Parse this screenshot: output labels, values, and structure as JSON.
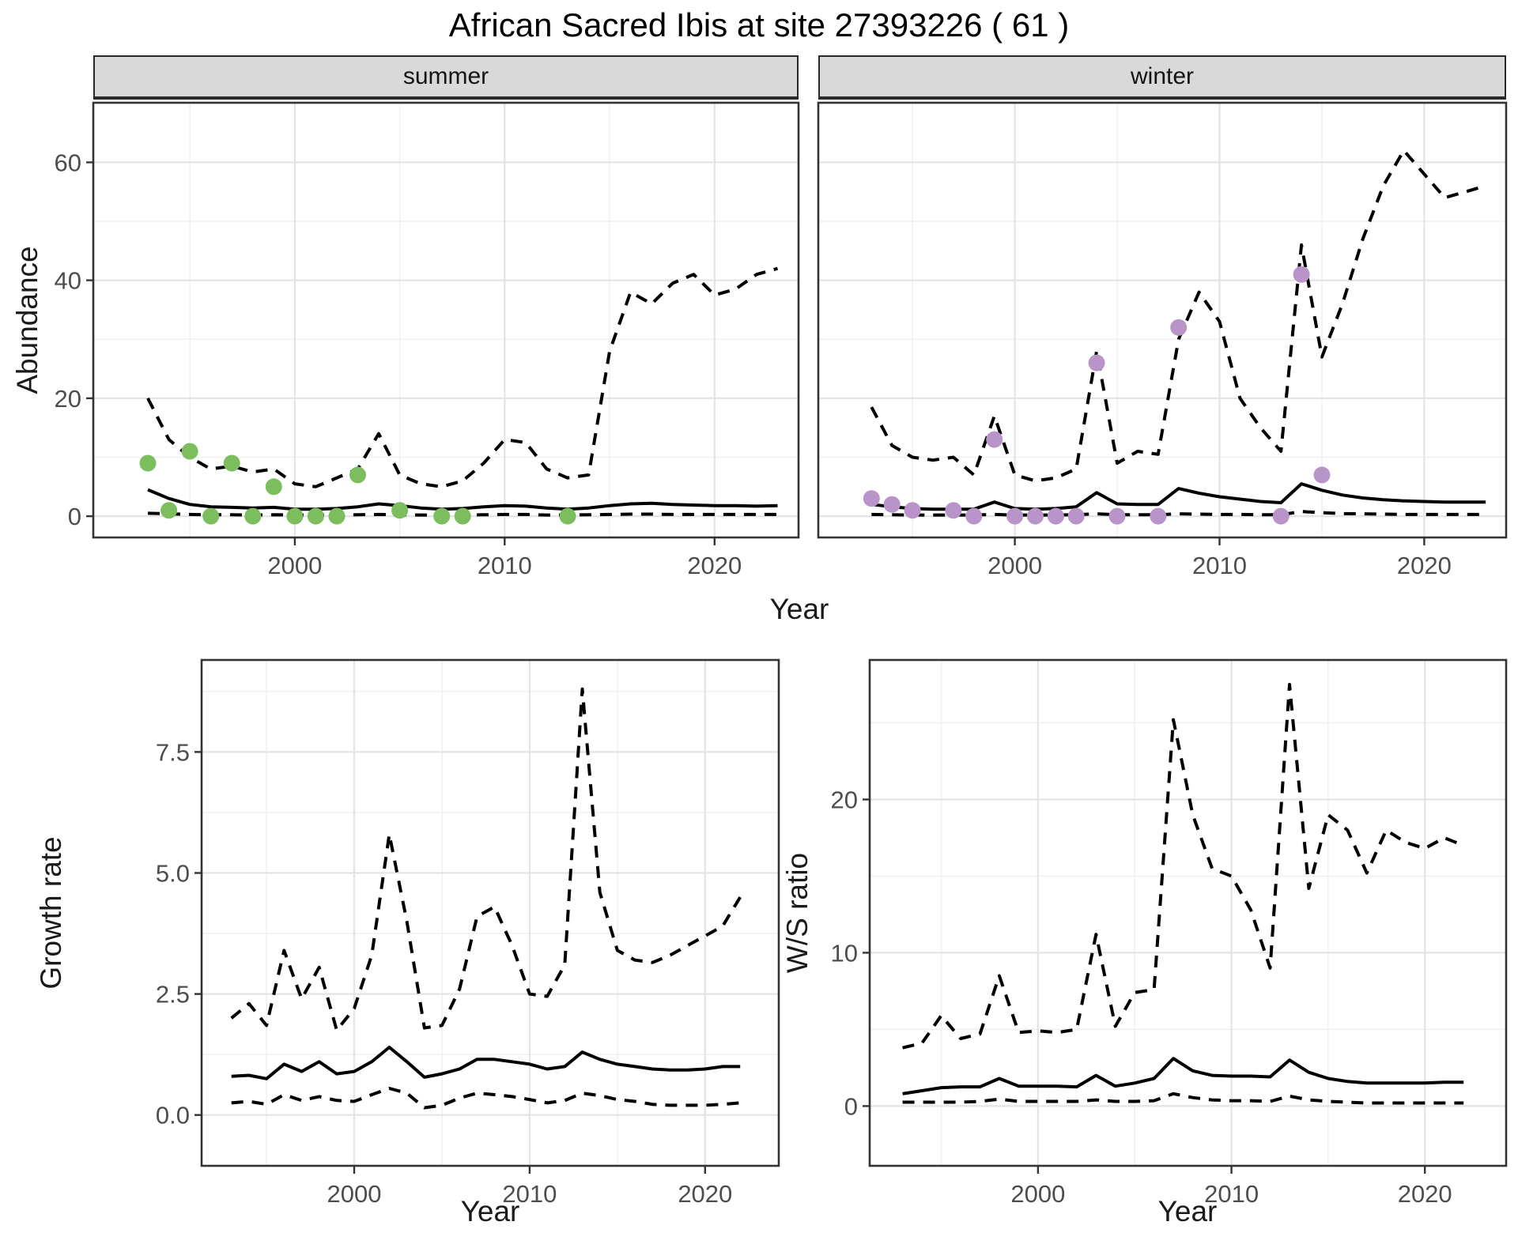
{
  "title": "African Sacred Ibis at site 27393226 ( 61 )",
  "facets": [
    "summer",
    "winter"
  ],
  "axes": {
    "x_label": "Year",
    "abundance_label": "Abundance",
    "growth_label": "Growth rate",
    "ws_label": "W/S ratio"
  },
  "colors": {
    "summer_points": "#7cbd5e",
    "winter_points": "#b894c9",
    "line": "#000000",
    "grid_major": "#e4e4e4",
    "grid_minor": "#f0f0f0",
    "panel_border": "#333333",
    "strip_bg": "#d9d9d9",
    "tick_label": "#4d4d4d"
  },
  "chart_data": [
    {
      "key": "summer_abundance",
      "type": "line",
      "title": "summer",
      "xlabel": "Year",
      "ylabel": "Abundance",
      "grid": true,
      "legend": "none",
      "xlim": [
        1990.4,
        2024.0
      ],
      "ylim": [
        -3.6,
        70.1
      ],
      "xticks": [
        2000,
        2010,
        2020
      ],
      "minor_xticks": [
        1995,
        2005,
        2015
      ],
      "yticks": [
        0,
        20,
        40,
        60
      ],
      "ytick_labels": [
        "0",
        "20",
        "40",
        "60"
      ],
      "minor_yticks": [
        10,
        30,
        50,
        70
      ],
      "x": [
        1993,
        1994,
        1995,
        1996,
        1997,
        1998,
        1999,
        2000,
        2001,
        2002,
        2003,
        2004,
        2005,
        2006,
        2007,
        2008,
        2009,
        2010,
        2011,
        2012,
        2013,
        2014,
        2015,
        2016,
        2017,
        2018,
        2019,
        2020,
        2021,
        2022,
        2023
      ],
      "series": [
        {
          "key": "upper_ci",
          "name": "upper 95% CI",
          "style": "dashed",
          "values": [
            20,
            13,
            10,
            8,
            8.5,
            7.5,
            8,
            5.5,
            5,
            6.5,
            8,
            14,
            7,
            5.5,
            5,
            6,
            9,
            13,
            12.5,
            8,
            6.5,
            7,
            28,
            38,
            36,
            39.5,
            41,
            37.5,
            38.5,
            41,
            42
          ]
        },
        {
          "key": "median",
          "name": "median estimate",
          "style": "solid",
          "values": [
            4.5,
            3,
            2,
            1.6,
            1.5,
            1.4,
            1.5,
            1.2,
            1.2,
            1.3,
            1.6,
            2.1,
            1.8,
            1.4,
            1.2,
            1.3,
            1.6,
            1.8,
            1.7,
            1.4,
            1.2,
            1.4,
            1.8,
            2.1,
            2.2,
            2.0,
            1.9,
            1.8,
            1.8,
            1.7,
            1.8
          ]
        },
        {
          "key": "lower_ci",
          "name": "lower 95% CI",
          "style": "dashed",
          "values": [
            0.5,
            0.4,
            0.3,
            0.25,
            0.25,
            0.2,
            0.25,
            0.2,
            0.2,
            0.2,
            0.25,
            0.3,
            0.25,
            0.2,
            0.2,
            0.2,
            0.25,
            0.3,
            0.3,
            0.2,
            0.2,
            0.25,
            0.3,
            0.35,
            0.35,
            0.3,
            0.3,
            0.3,
            0.3,
            0.3,
            0.3
          ]
        }
      ],
      "points": {
        "key": "observed_counts",
        "name": "observed counts",
        "color": "#7cbd5e",
        "x": [
          1993,
          1994,
          1995,
          1996,
          1997,
          1998,
          1999,
          2000,
          2001,
          2002,
          2003,
          2005,
          2007,
          2008,
          2013
        ],
        "y": [
          9,
          1,
          11,
          0,
          9,
          0,
          5,
          0,
          0,
          0,
          7,
          1,
          0,
          0,
          0
        ]
      }
    },
    {
      "key": "winter_abundance",
      "type": "line",
      "title": "winter",
      "xlabel": "Year",
      "ylabel": "Abundance",
      "grid": true,
      "legend": "none",
      "xlim": [
        1990.4,
        2024.0
      ],
      "ylim": [
        -3.6,
        70.1
      ],
      "xticks": [
        2000,
        2010,
        2020
      ],
      "minor_xticks": [
        1995,
        2005,
        2015
      ],
      "yticks": [
        0,
        20,
        40,
        60
      ],
      "ytick_labels": [
        "0",
        "20",
        "40",
        "60"
      ],
      "minor_yticks": [
        10,
        30,
        50,
        70
      ],
      "x": [
        1993,
        1994,
        1995,
        1996,
        1997,
        1998,
        1999,
        2000,
        2001,
        2002,
        2003,
        2004,
        2005,
        2006,
        2007,
        2008,
        2009,
        2010,
        2011,
        2012,
        2013,
        2014,
        2015,
        2016,
        2017,
        2018,
        2019,
        2020,
        2021,
        2022,
        2023
      ],
      "series": [
        {
          "key": "upper_ci",
          "name": "upper 95% CI",
          "style": "dashed",
          "values": [
            18.5,
            12,
            10,
            9.5,
            10,
            7,
            17,
            7,
            6,
            6.5,
            8,
            28,
            9,
            11,
            10.5,
            30,
            38,
            33,
            20,
            15,
            11,
            46,
            27,
            36,
            47,
            56,
            62,
            58,
            54,
            55,
            56
          ]
        },
        {
          "key": "median",
          "name": "median estimate",
          "style": "solid",
          "values": [
            2,
            1.6,
            1.3,
            1.2,
            1.2,
            1.2,
            2.4,
            1.3,
            1.2,
            1.3,
            1.6,
            4,
            2.1,
            2,
            2,
            4.7,
            3.9,
            3.3,
            2.9,
            2.5,
            2.3,
            5.5,
            4.4,
            3.6,
            3.1,
            2.8,
            2.6,
            2.5,
            2.4,
            2.4,
            2.4
          ]
        },
        {
          "key": "lower_ci",
          "name": "lower 95% CI",
          "style": "dashed",
          "values": [
            0.3,
            0.25,
            0.2,
            0.2,
            0.2,
            0.2,
            0.3,
            0.2,
            0.2,
            0.2,
            0.25,
            0.4,
            0.25,
            0.25,
            0.25,
            0.4,
            0.35,
            0.3,
            0.3,
            0.25,
            0.25,
            0.8,
            0.6,
            0.45,
            0.4,
            0.35,
            0.3,
            0.3,
            0.3,
            0.3,
            0.3
          ]
        }
      ],
      "points": {
        "key": "observed_counts",
        "name": "observed counts",
        "color": "#b894c9",
        "x": [
          1993,
          1994,
          1995,
          1997,
          1998,
          1999,
          2000,
          2001,
          2002,
          2003,
          2004,
          2005,
          2007,
          2008,
          2013,
          2014,
          2015
        ],
        "y": [
          3,
          2,
          1,
          1,
          0,
          13,
          0,
          0,
          0,
          0,
          26,
          0,
          0,
          32,
          0,
          41,
          7
        ]
      }
    },
    {
      "key": "growth_rate",
      "type": "line",
      "title": "",
      "xlabel": "Year",
      "ylabel": "Growth rate",
      "grid": true,
      "legend": "none",
      "xlim": [
        1991.3,
        2024.2
      ],
      "ylim": [
        -1.05,
        9.4
      ],
      "xticks": [
        2000,
        2010,
        2020
      ],
      "minor_xticks": [
        1995,
        2005,
        2015
      ],
      "yticks": [
        0,
        2.5,
        5,
        7.5
      ],
      "ytick_labels": [
        "0.0",
        "2.5",
        "5.0",
        "7.5"
      ],
      "minor_yticks": [
        1.25,
        3.75,
        6.25,
        8.75
      ],
      "x": [
        1993,
        1994,
        1995,
        1996,
        1997,
        1998,
        1999,
        2000,
        2001,
        2002,
        2003,
        2004,
        2005,
        2006,
        2007,
        2008,
        2009,
        2010,
        2011,
        2012,
        2013,
        2014,
        2015,
        2016,
        2017,
        2018,
        2019,
        2020,
        2021,
        2022
      ],
      "series": [
        {
          "key": "upper_ci",
          "name": "upper 95% CI",
          "style": "dashed",
          "values": [
            2.0,
            2.3,
            1.85,
            3.4,
            2.4,
            3.05,
            1.75,
            2.2,
            3.3,
            5.8,
            4.0,
            1.8,
            1.85,
            2.6,
            4.1,
            4.3,
            3.5,
            2.5,
            2.45,
            3.1,
            8.8,
            4.6,
            3.4,
            3.2,
            3.15,
            3.3,
            3.5,
            3.7,
            3.9,
            4.5
          ]
        },
        {
          "key": "median",
          "name": "median estimate",
          "style": "solid",
          "values": [
            0.8,
            0.82,
            0.75,
            1.05,
            0.9,
            1.1,
            0.85,
            0.9,
            1.1,
            1.4,
            1.1,
            0.78,
            0.85,
            0.95,
            1.15,
            1.15,
            1.1,
            1.05,
            0.95,
            1.0,
            1.3,
            1.15,
            1.05,
            1.0,
            0.95,
            0.93,
            0.93,
            0.95,
            1.0,
            1.0
          ]
        },
        {
          "key": "lower_ci",
          "name": "lower 95% CI",
          "style": "dashed",
          "values": [
            0.25,
            0.28,
            0.22,
            0.42,
            0.3,
            0.38,
            0.3,
            0.28,
            0.42,
            0.55,
            0.45,
            0.15,
            0.2,
            0.35,
            0.45,
            0.42,
            0.38,
            0.32,
            0.25,
            0.3,
            0.45,
            0.4,
            0.32,
            0.28,
            0.22,
            0.2,
            0.2,
            0.2,
            0.22,
            0.25
          ]
        }
      ]
    },
    {
      "key": "ws_ratio",
      "type": "line",
      "title": "",
      "xlabel": "Year",
      "ylabel": "W/S ratio",
      "grid": true,
      "legend": "none",
      "xlim": [
        1991.3,
        2024.2
      ],
      "ylim": [
        -3.9,
        29.1
      ],
      "xticks": [
        2000,
        2010,
        2020
      ],
      "minor_xticks": [
        1995,
        2005,
        2015
      ],
      "yticks": [
        0,
        10,
        20
      ],
      "ytick_labels": [
        "0",
        "10",
        "20"
      ],
      "minor_yticks": [
        5,
        15,
        25
      ],
      "x": [
        1993,
        1994,
        1995,
        1996,
        1997,
        1998,
        1999,
        2000,
        2001,
        2002,
        2003,
        2004,
        2005,
        2006,
        2007,
        2008,
        2009,
        2010,
        2011,
        2012,
        2013,
        2014,
        2015,
        2016,
        2017,
        2018,
        2019,
        2020,
        2021,
        2022
      ],
      "series": [
        {
          "key": "upper_ci",
          "name": "upper 95% CI",
          "style": "dashed",
          "values": [
            3.8,
            4.1,
            5.9,
            4.4,
            4.7,
            8.5,
            4.8,
            4.9,
            4.8,
            5.0,
            11.2,
            5.2,
            7.4,
            7.6,
            25.2,
            19.0,
            15.5,
            15.0,
            12.8,
            9.0,
            27.5,
            14.2,
            19.0,
            18.0,
            15.2,
            18.0,
            17.2,
            16.8,
            17.5,
            17.0
          ]
        },
        {
          "key": "median",
          "name": "median estimate",
          "style": "solid",
          "values": [
            0.8,
            1.0,
            1.2,
            1.25,
            1.25,
            1.8,
            1.3,
            1.3,
            1.3,
            1.25,
            2.0,
            1.3,
            1.5,
            1.8,
            3.1,
            2.3,
            2.0,
            1.95,
            1.95,
            1.9,
            3.0,
            2.2,
            1.8,
            1.6,
            1.5,
            1.5,
            1.5,
            1.5,
            1.55,
            1.55
          ]
        },
        {
          "key": "lower_ci",
          "name": "lower 95% CI",
          "style": "dashed",
          "values": [
            0.25,
            0.25,
            0.25,
            0.25,
            0.3,
            0.45,
            0.3,
            0.3,
            0.3,
            0.3,
            0.4,
            0.3,
            0.3,
            0.35,
            0.8,
            0.55,
            0.4,
            0.35,
            0.35,
            0.3,
            0.65,
            0.4,
            0.3,
            0.25,
            0.2,
            0.2,
            0.2,
            0.2,
            0.2,
            0.2
          ]
        }
      ]
    }
  ]
}
